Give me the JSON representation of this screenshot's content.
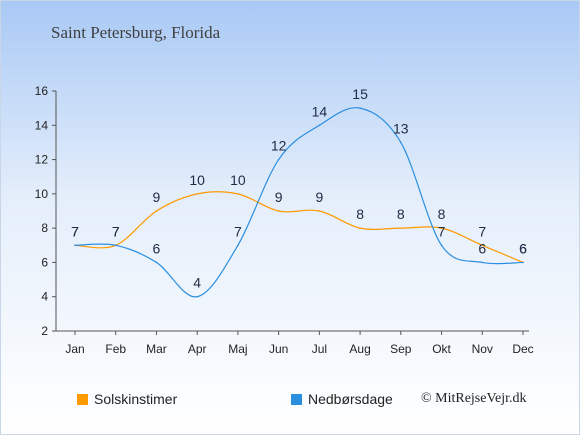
{
  "chart_data": {
    "type": "line",
    "title": "Saint Petersburg, Florida",
    "categories": [
      "Jan",
      "Feb",
      "Mar",
      "Apr",
      "Maj",
      "Jun",
      "Jul",
      "Aug",
      "Sep",
      "Okt",
      "Nov",
      "Dec"
    ],
    "series": [
      {
        "name": "Solskinstimer",
        "color": "#ff9900",
        "values": [
          7,
          7,
          9,
          10,
          10,
          9,
          9,
          8,
          8,
          8,
          7,
          6
        ]
      },
      {
        "name": "Nedbørsdage",
        "color": "#2b8fe0",
        "values": [
          7,
          7,
          6,
          4,
          7,
          12,
          14,
          15,
          13,
          7,
          6,
          6
        ]
      }
    ],
    "yticks": [
      2,
      4,
      6,
      8,
      10,
      12,
      14,
      16
    ],
    "ylim": [
      2,
      16
    ],
    "xlabel": "",
    "ylabel": "",
    "grid": false,
    "legend_position": "bottom"
  },
  "footer": {
    "copyright": "© MitRejseVejr.dk"
  }
}
